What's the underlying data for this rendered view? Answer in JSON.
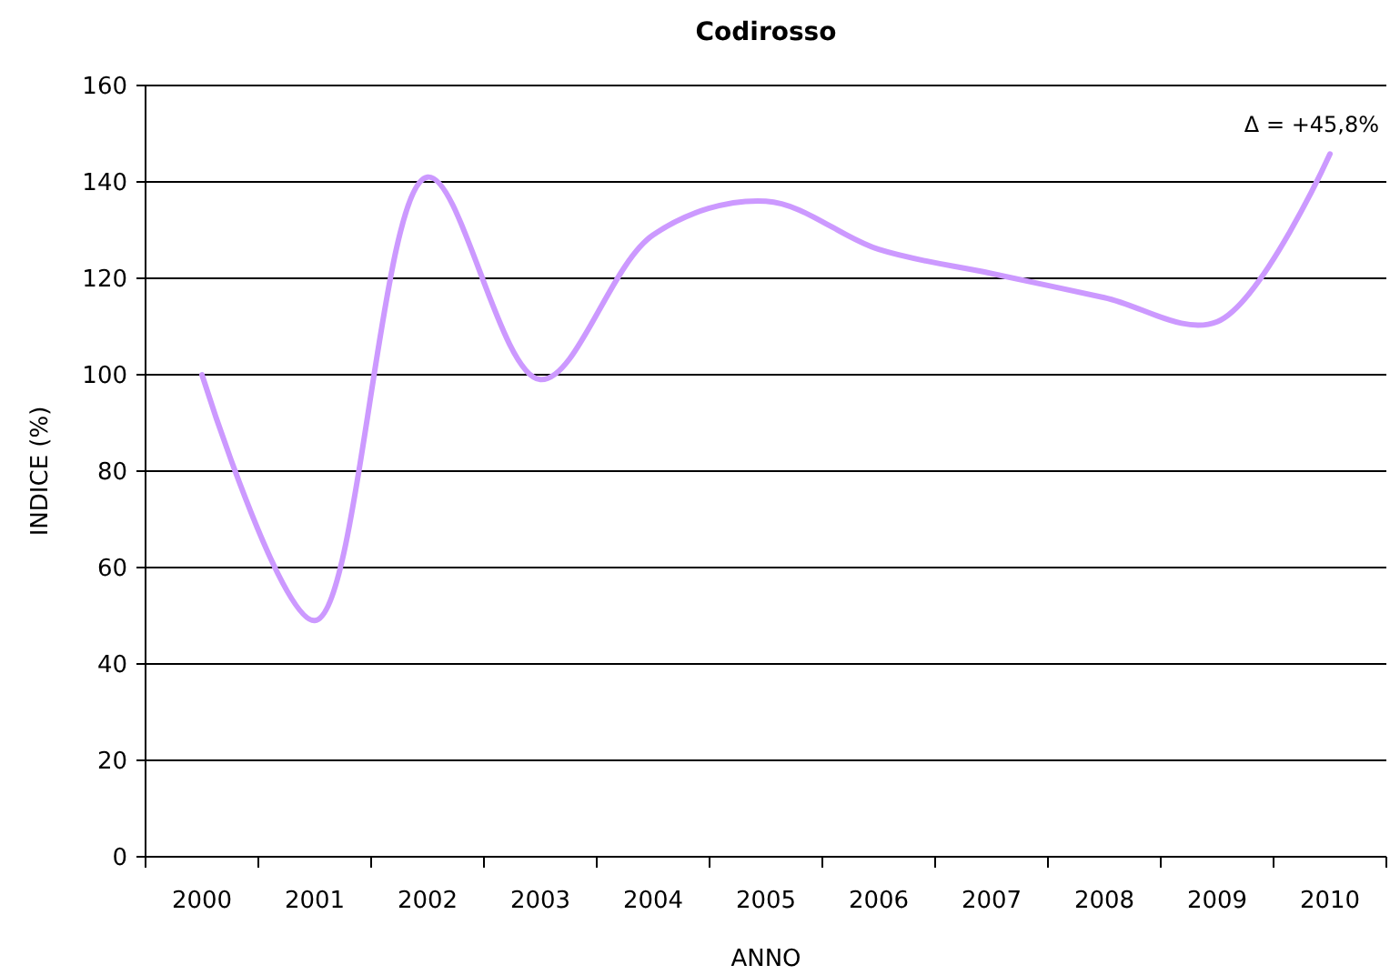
{
  "chart_data": {
    "type": "line",
    "title": "Codirosso",
    "xlabel": "ANNO",
    "ylabel": "INDICE (%)",
    "categories": [
      "2000",
      "2001",
      "2002",
      "2003",
      "2004",
      "2005",
      "2006",
      "2007",
      "2008",
      "2009",
      "2010"
    ],
    "series": [
      {
        "color": "#cc99ff",
        "values": [
          100,
          49,
          141,
          99,
          129,
          136,
          126,
          121,
          116,
          111,
          145.8
        ]
      }
    ],
    "ylim": [
      0,
      160
    ],
    "yticks": [
      0,
      20,
      40,
      60,
      80,
      100,
      120,
      140,
      160
    ],
    "grid": "y",
    "marker": "none",
    "line_style": "solid",
    "annotations": [
      {
        "text": "Δ = +45,8%",
        "x": "2010",
        "y": 145.8
      }
    ]
  }
}
